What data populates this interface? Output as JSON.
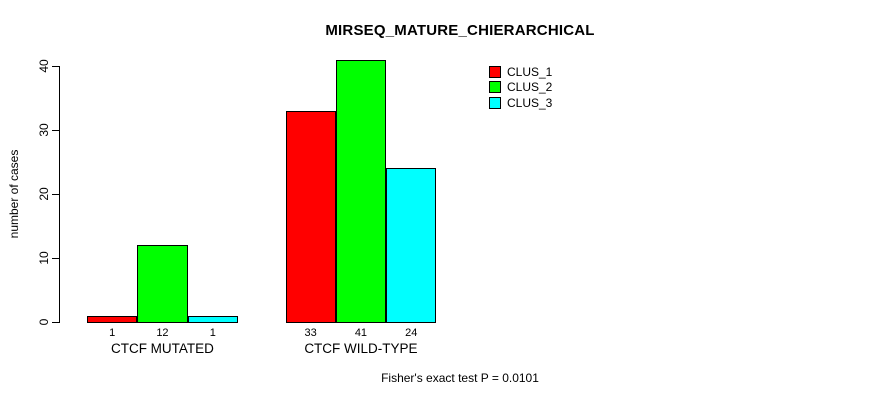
{
  "chart_data": {
    "type": "bar",
    "title": "MIRSEQ_MATURE_CHIERARCHICAL",
    "xlabel": "",
    "ylabel": "number of cases",
    "categories": [
      "CTCF MUTATED",
      "CTCF WILD-TYPE"
    ],
    "series": [
      {
        "name": "CLUS_1",
        "color": "#ff0000",
        "values": [
          1,
          33
        ]
      },
      {
        "name": "CLUS_2",
        "color": "#00ff00",
        "values": [
          12,
          41
        ]
      },
      {
        "name": "CLUS_3",
        "color": "#00ffff",
        "values": [
          1,
          24
        ]
      }
    ],
    "yticks": [
      0,
      10,
      20,
      30,
      40
    ],
    "ylim": [
      0,
      40
    ],
    "bar_value_labels_shown": true,
    "grid": false,
    "legend_position": "top-right",
    "annotation": "Fisher's exact test P = 0.0101",
    "axis_color": "#000000",
    "background_color": "#ffffff"
  }
}
